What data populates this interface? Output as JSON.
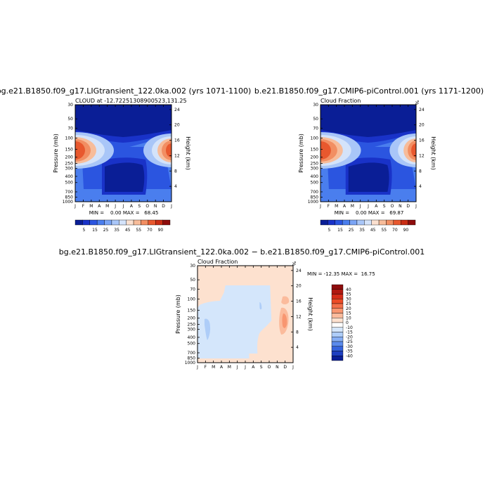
{
  "chart_data": [
    {
      "type": "heatmap",
      "title": "bg.e21.B1850.f09_g17.LIGtransient_122.0ka.002 (yrs 1071-1100)",
      "subtitle": "CLOUD at -12.72251308900523,131.25",
      "ylabel": "Pressure (mb)",
      "ylabel_right": "Height (km)",
      "x_ticks": [
        "J",
        "F",
        "M",
        "A",
        "M",
        "J",
        "J",
        "A",
        "S",
        "O",
        "N",
        "D",
        "J"
      ],
      "y_ticks": [
        "30",
        "50",
        "70",
        "100",
        "150",
        "200",
        "250",
        "300",
        "400",
        "500",
        "700",
        "850",
        "1000"
      ],
      "y_ticks_right": [
        "24",
        "20",
        "16",
        "12",
        "8",
        "4"
      ],
      "stats": "MIN =    0.00 MAX =   68.45",
      "colorbar_labels": [
        "5",
        "15",
        "25",
        "35",
        "45",
        "55",
        "70",
        "90"
      ],
      "min": 0.0,
      "max": 68.45
    },
    {
      "type": "heatmap",
      "title": "b.e21.B1850.f09_g17.CMIP6-piControl.001 (yrs 1171-1200)",
      "subtitle": "Cloud Fraction",
      "corner_label": "%",
      "ylabel": "Pressure (mb)",
      "ylabel_right": "Height (km)",
      "x_ticks": [
        "J",
        "F",
        "M",
        "A",
        "M",
        "J",
        "J",
        "A",
        "S",
        "O",
        "N",
        "D",
        "J"
      ],
      "y_ticks": [
        "30",
        "50",
        "70",
        "100",
        "150",
        "200",
        "250",
        "300",
        "400",
        "500",
        "700",
        "850",
        "1000"
      ],
      "y_ticks_right": [
        "24",
        "20",
        "16",
        "12",
        "8",
        "4"
      ],
      "stats": "MIN =    0.00 MAX =   69.87",
      "colorbar_labels": [
        "5",
        "15",
        "25",
        "35",
        "45",
        "55",
        "70",
        "90"
      ],
      "min": 0.0,
      "max": 69.87
    },
    {
      "type": "heatmap",
      "title": "bg.e21.B1850.f09_g17.LIGtransient_122.0ka.002 − b.e21.B1850.f09_g17.CMIP6-piControl.001",
      "subtitle": "Cloud Fraction",
      "corner_label": "%",
      "ylabel": "Pressure (mb)",
      "ylabel_right": "Height (km)",
      "x_ticks": [
        "J",
        "F",
        "M",
        "A",
        "M",
        "J",
        "J",
        "A",
        "S",
        "O",
        "N",
        "D",
        "J"
      ],
      "y_ticks": [
        "30",
        "50",
        "70",
        "100",
        "150",
        "200",
        "250",
        "300",
        "400",
        "500",
        "700",
        "850",
        "1000"
      ],
      "y_ticks_right": [
        "24",
        "20",
        "16",
        "12",
        "8",
        "4"
      ],
      "stats": "MIN = -12.35 MAX =  16.75",
      "colorbar_labels": [
        "40",
        "35",
        "30",
        "25",
        "20",
        "15",
        "10",
        "0",
        "-10",
        "-15",
        "-20",
        "-25",
        "-30",
        "-35",
        "-40"
      ],
      "min": -12.35,
      "max": 16.75
    }
  ],
  "colors": {
    "abs_scale": [
      "#0a1e96",
      "#1932c8",
      "#2b55e0",
      "#4a7eee",
      "#7aa4f5",
      "#a9c6f8",
      "#d4e3fa",
      "#fbe0cf",
      "#f7bc9a",
      "#f28e62",
      "#e8582e",
      "#c92d14",
      "#8e0c0c"
    ],
    "diff_scale": [
      "#8e0c0c",
      "#b01810",
      "#d42c18",
      "#ec4b26",
      "#f4704a",
      "#f89670",
      "#fbbb9c",
      "#fde1cf",
      "#ffffff",
      "#d4e6fb",
      "#aecdf8",
      "#86aef4",
      "#5a8aec",
      "#3563dc",
      "#1d3fc0",
      "#0a1e96"
    ]
  }
}
